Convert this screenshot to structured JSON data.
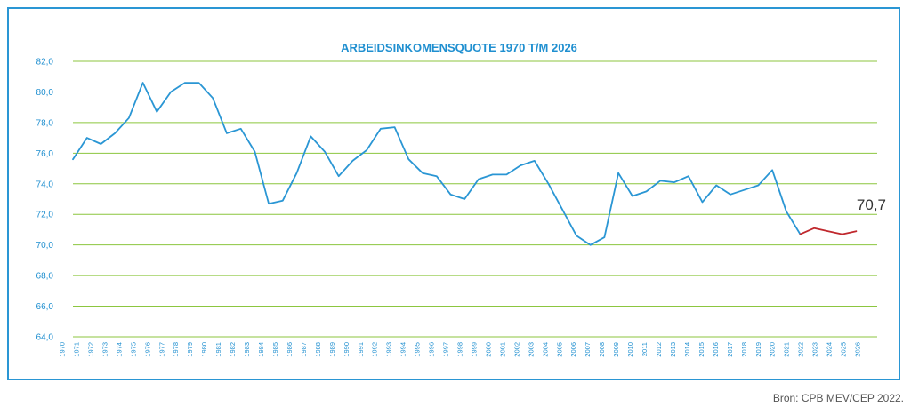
{
  "chart_data": {
    "type": "line",
    "title": "ARBEIDSINKOMENSQUOTE 1970 T/M 2026",
    "xlabel": "",
    "ylabel": "",
    "ylim": [
      64,
      82
    ],
    "y_ticks": [
      "64,0",
      "66,0",
      "68,0",
      "70,0",
      "72,0",
      "74,0",
      "76,0",
      "78,0",
      "80,0",
      "82,0"
    ],
    "x_tick_labels": [
      "1970",
      "1971",
      "1972",
      "1973",
      "1974",
      "1975",
      "1976",
      "1977",
      "1978",
      "1979",
      "1980",
      "1981",
      "1982",
      "1983",
      "1984",
      "1985",
      "1986",
      "1987",
      "1988",
      "1989",
      "1990",
      "1991",
      "1992",
      "1993",
      "1994",
      "1995",
      "1996",
      "1997",
      "1998",
      "1999",
      "2000",
      "2001",
      "2002",
      "2003",
      "2004",
      "2005",
      "2006",
      "2007",
      "2008",
      "2009",
      "2010",
      "2011",
      "2012",
      "2013",
      "2014",
      "2015",
      "2016",
      "2017",
      "2018",
      "2019",
      "2020",
      "2021",
      "2022",
      "2023",
      "2024",
      "2025",
      "2026"
    ],
    "grid": true,
    "series": [
      {
        "color": "#2a96d4",
        "points": [
          [
            1970,
            75.6
          ],
          [
            1971,
            77.0
          ],
          [
            1972,
            76.6
          ],
          [
            1973,
            77.3
          ],
          [
            1974,
            78.3
          ],
          [
            1975,
            80.6
          ],
          [
            1976,
            78.7
          ],
          [
            1977,
            80.0
          ],
          [
            1978,
            80.6
          ],
          [
            1979,
            80.6
          ],
          [
            1980,
            79.6
          ],
          [
            1981,
            77.3
          ],
          [
            1982,
            77.6
          ],
          [
            1983,
            76.1
          ],
          [
            1984,
            72.7
          ],
          [
            1985,
            72.9
          ],
          [
            1986,
            74.7
          ],
          [
            1987,
            77.1
          ],
          [
            1988,
            76.1
          ],
          [
            1989,
            74.5
          ],
          [
            1990,
            75.5
          ],
          [
            1991,
            76.2
          ],
          [
            1992,
            77.6
          ],
          [
            1993,
            77.7
          ],
          [
            1994,
            75.6
          ],
          [
            1995,
            74.7
          ],
          [
            1996,
            74.5
          ],
          [
            1997,
            73.3
          ],
          [
            1998,
            73.0
          ],
          [
            1999,
            74.3
          ],
          [
            2000,
            74.6
          ],
          [
            2001,
            74.6
          ],
          [
            2002,
            75.2
          ],
          [
            2003,
            75.5
          ],
          [
            2004,
            74.0
          ],
          [
            2005,
            72.3
          ],
          [
            2006,
            70.6
          ],
          [
            2007,
            70.0
          ],
          [
            2008,
            70.5
          ],
          [
            2009,
            74.7
          ],
          [
            2010,
            73.2
          ],
          [
            2011,
            73.5
          ],
          [
            2012,
            74.2
          ],
          [
            2013,
            74.1
          ],
          [
            2014,
            74.5
          ],
          [
            2015,
            72.8
          ],
          [
            2016,
            73.9
          ],
          [
            2017,
            73.3
          ],
          [
            2018,
            73.6
          ],
          [
            2019,
            73.9
          ],
          [
            2020,
            74.9
          ],
          [
            2021,
            72.2
          ],
          [
            2022,
            70.7
          ]
        ]
      },
      {
        "color": "#c0282d",
        "points": [
          [
            2022,
            70.7
          ],
          [
            2023,
            71.1
          ],
          [
            2024,
            70.9
          ],
          [
            2025,
            70.7
          ],
          [
            2026,
            70.9
          ]
        ]
      }
    ],
    "annotation": "70,7",
    "colors": {
      "line": "#2a96d4",
      "forecast": "#c0282d",
      "grid": "#8cc63f",
      "text": "#1f8fd0",
      "frame": "#2a96d4"
    }
  },
  "source": "Bron: CPB MEV/CEP 2022."
}
